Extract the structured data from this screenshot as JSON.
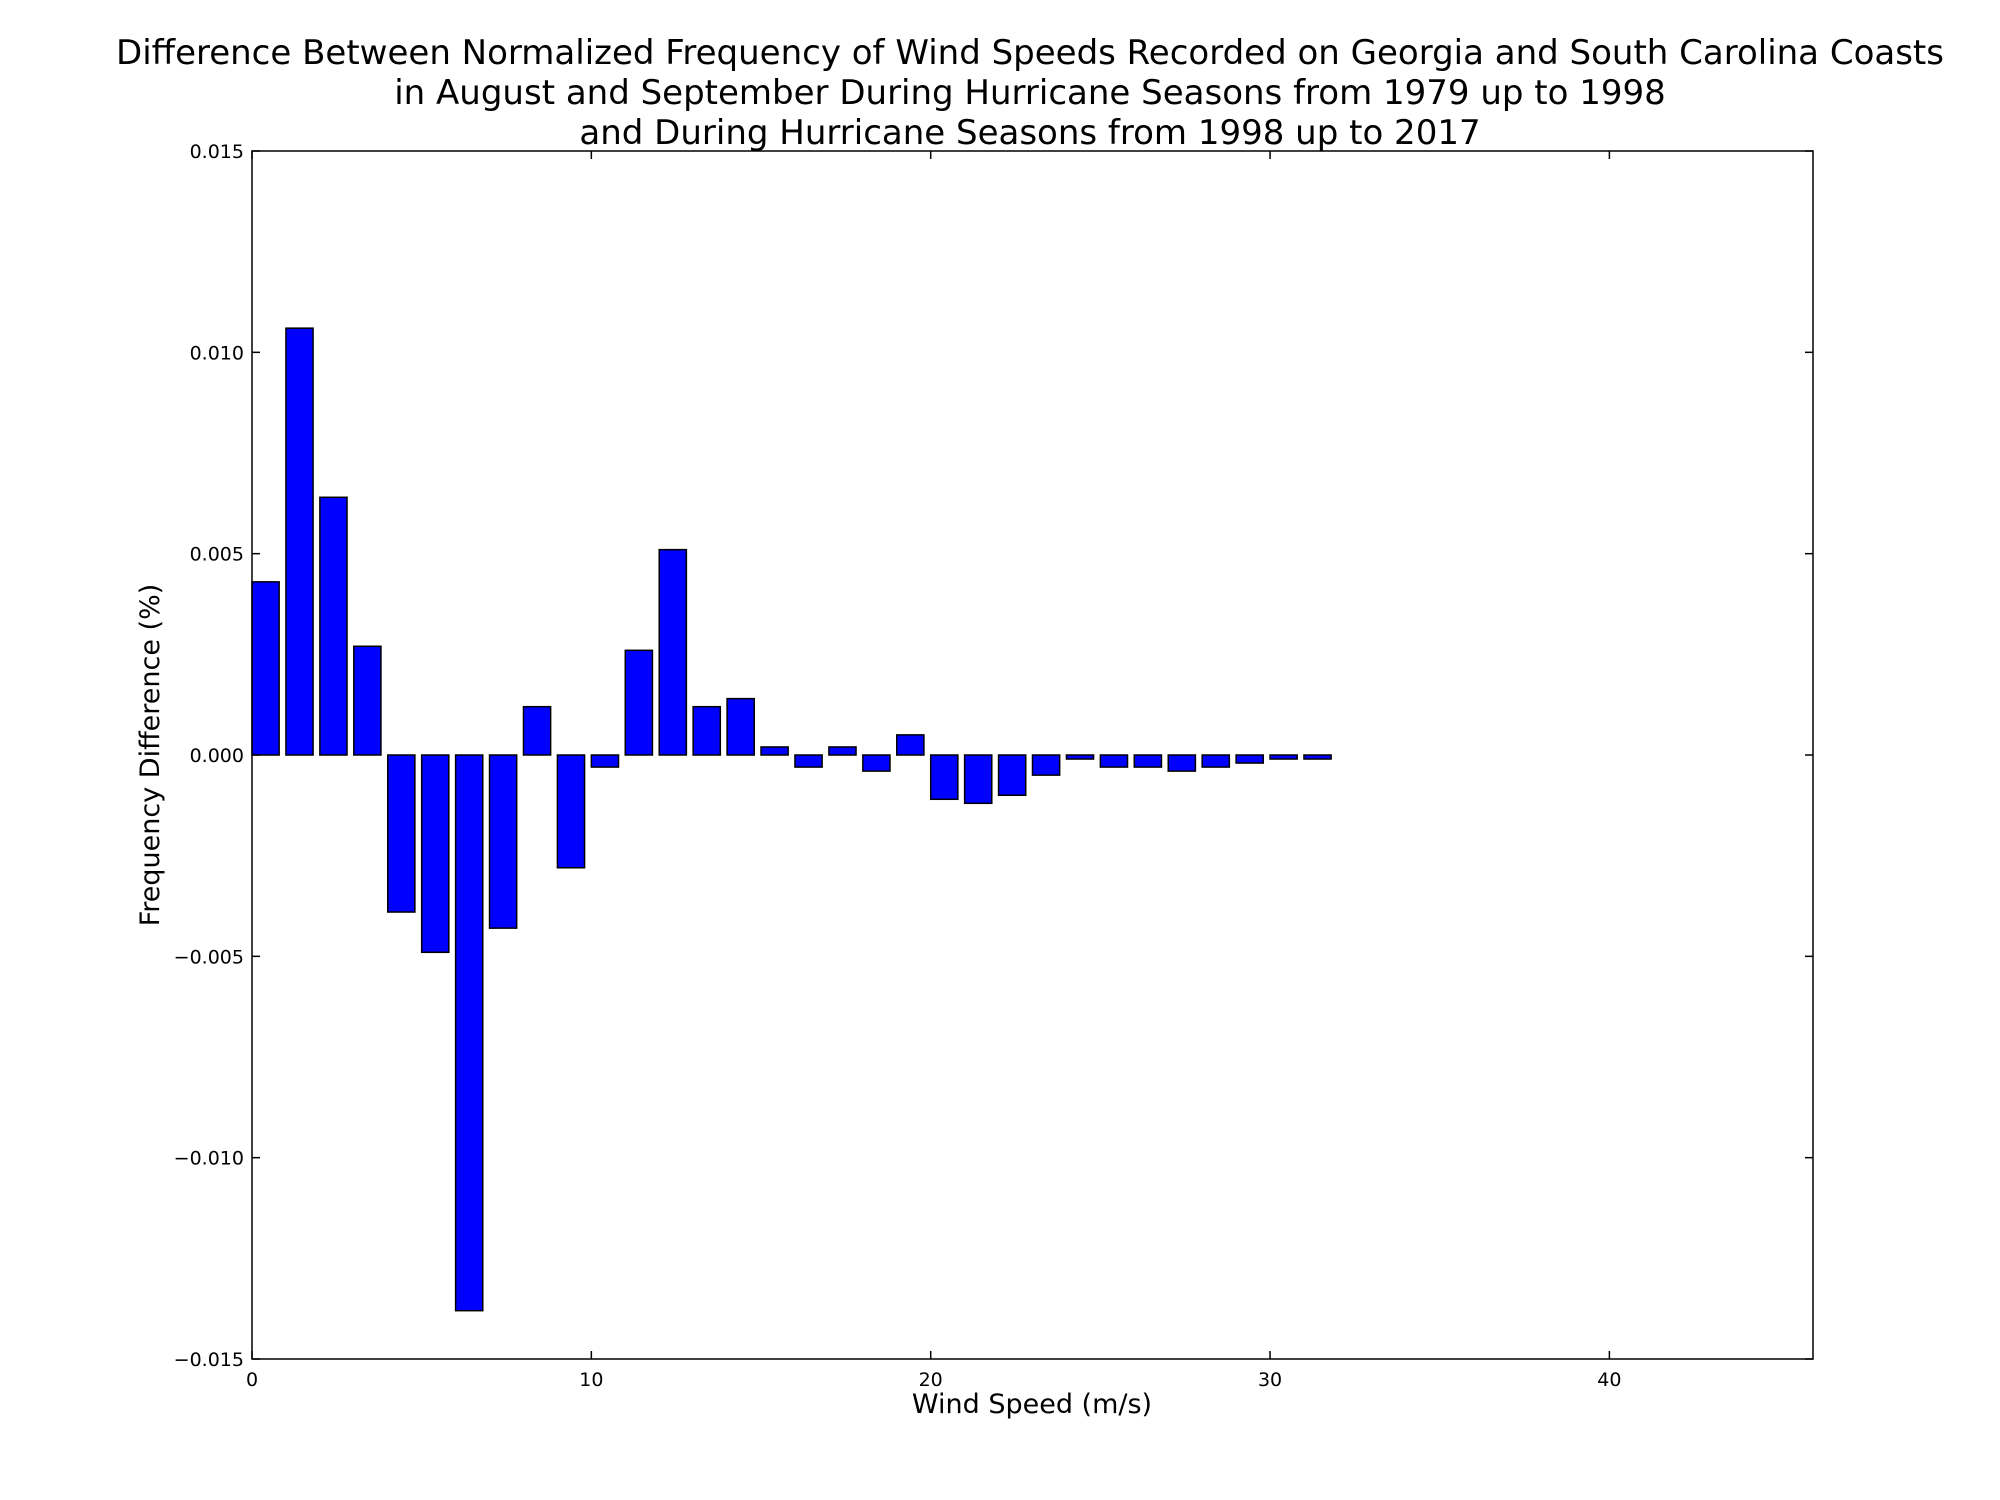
{
  "chart_data": {
    "type": "bar",
    "title_lines": [
      "Difference Between Normalized Frequency of Wind Speeds Recorded on Georgia and South Carolina Coasts",
      "in August and September During Hurricane Seasons from 1979 up to 1998",
      "and During Hurricane Seasons from 1998 up to 2017"
    ],
    "xlabel": "Wind Speed (m/s)",
    "ylabel": "Frequency Difference (%)",
    "xlim": [
      0,
      46
    ],
    "ylim": [
      -0.015,
      0.015
    ],
    "xticks": [
      0,
      10,
      20,
      30,
      40
    ],
    "xtick_labels": [
      "0",
      "10",
      "20",
      "30",
      "40"
    ],
    "yticks": [
      -0.015,
      -0.01,
      -0.005,
      0,
      0.005,
      0.01,
      0.015
    ],
    "ytick_labels": [
      "−0.015",
      "−0.010",
      "−0.005",
      "0.000",
      "0.005",
      "0.010",
      "0.015"
    ],
    "bar_color": "#0000ff",
    "bar_edge_color": "#000000",
    "bar_width": 0.8,
    "grid": false,
    "x": [
      0,
      1,
      2,
      3,
      4,
      5,
      6,
      7,
      8,
      9,
      10,
      11,
      12,
      13,
      14,
      15,
      16,
      17,
      18,
      19,
      20,
      21,
      22,
      23,
      24,
      25,
      26,
      27,
      28,
      29,
      30,
      31,
      32,
      33,
      34,
      35,
      36,
      37,
      38,
      39,
      40,
      41,
      42,
      43,
      44
    ],
    "values": [
      0.0043,
      0.0106,
      0.0064,
      0.0027,
      -0.0039,
      -0.0049,
      -0.0138,
      -0.0043,
      0.0012,
      -0.0028,
      -0.0003,
      0.0026,
      0.0051,
      0.0012,
      0.0014,
      0.0002,
      -0.0003,
      0.0002,
      -0.0004,
      0.0005,
      -0.0011,
      -0.0012,
      -0.001,
      -0.0005,
      -0.0001,
      -0.0003,
      -0.0003,
      -0.0004,
      -0.0003,
      -0.0002,
      -0.0001,
      -0.0001,
      0,
      0,
      0,
      0,
      0,
      0,
      0,
      0,
      0,
      0,
      0,
      0,
      0
    ]
  }
}
